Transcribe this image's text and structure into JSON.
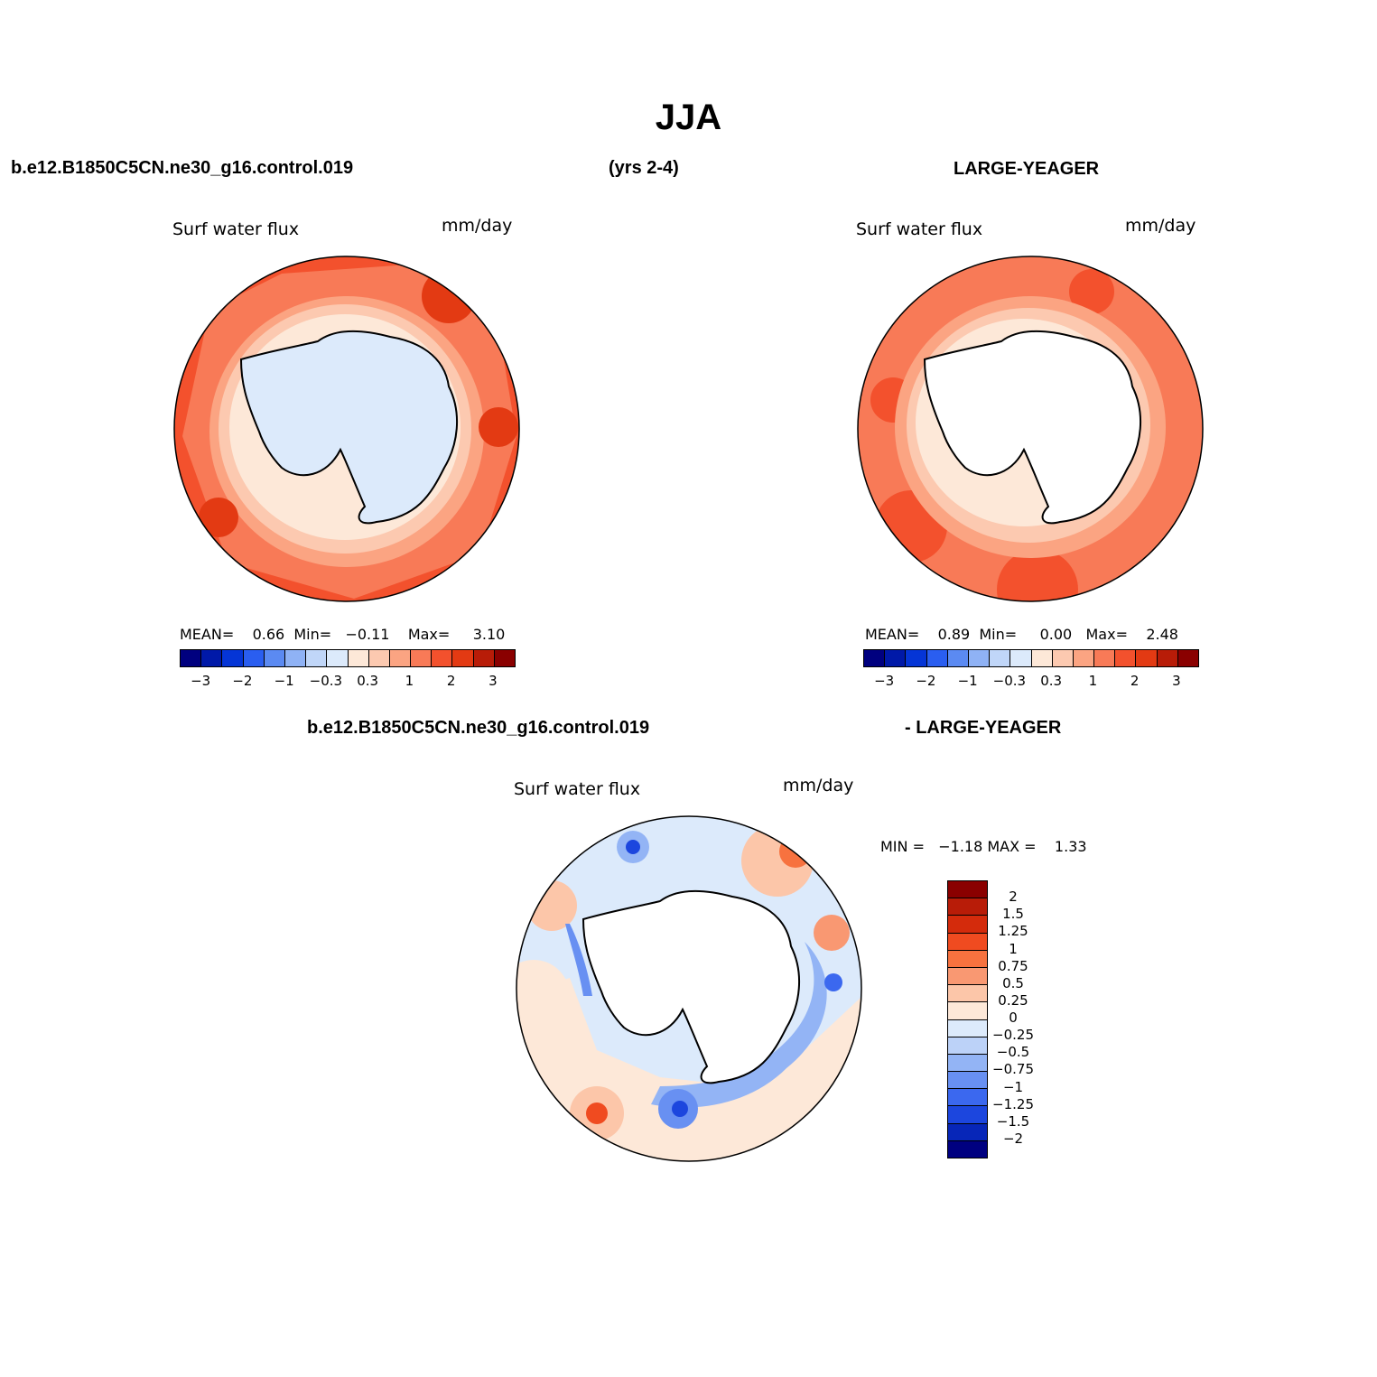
{
  "title": "JJA",
  "case_name": "b.e12.B1850C5CN.ne30_g16.control.019",
  "years": "(yrs 2-4)",
  "obs_name": "LARGE-YEAGER",
  "diff_left": "b.e12.B1850C5CN.ne30_g16.control.019",
  "diff_right": "- LARGE-YEAGER",
  "variable": "Surf water flux",
  "units": "mm/day",
  "panels": [
    {
      "id": "model",
      "mean_label": "MEAN=",
      "mean": "0.66",
      "min_label": "Min=",
      "min": "−0.11",
      "max_label": "Max=",
      "max": "3.10"
    },
    {
      "id": "obs",
      "mean_label": "MEAN=",
      "mean": "0.89",
      "min_label": "Min=",
      "min": "0.00",
      "max_label": "Max=",
      "max": "2.48"
    }
  ],
  "diff_stats": {
    "min_label": "MIN =",
    "min": "−1.18",
    "max_label": "MAX =",
    "max": "1.33"
  },
  "colorbar_h": {
    "colors": [
      "#00007f",
      "#0019a8",
      "#0535d6",
      "#2a5ef0",
      "#5b8af2",
      "#8fb2f5",
      "#c0d6f8",
      "#dceafb",
      "#fde8d8",
      "#fcc9b0",
      "#fba482",
      "#f87a57",
      "#f3512d",
      "#e33a13",
      "#b81c08",
      "#8a0000"
    ],
    "tick_labels": [
      "−3",
      "−2",
      "−1",
      "−0.3",
      "0.3",
      "1",
      "2",
      "3"
    ]
  },
  "colorbar_v": {
    "colors": [
      "#8a0000",
      "#b81c08",
      "#d42b0c",
      "#f04b20",
      "#f7723f",
      "#f99872",
      "#fcc6a9",
      "#fde8d8",
      "#dceafb",
      "#bcd2f8",
      "#93b4f5",
      "#6890f2",
      "#3b68ef",
      "#1c46de",
      "#0726b8",
      "#000080"
    ],
    "tick_labels": [
      "2",
      "1.5",
      "1.25",
      "1",
      "0.75",
      "0.5",
      "0.25",
      "0",
      "−0.25",
      "−0.5",
      "−0.75",
      "−1",
      "−1.25",
      "−1.5",
      "−2"
    ]
  }
}
